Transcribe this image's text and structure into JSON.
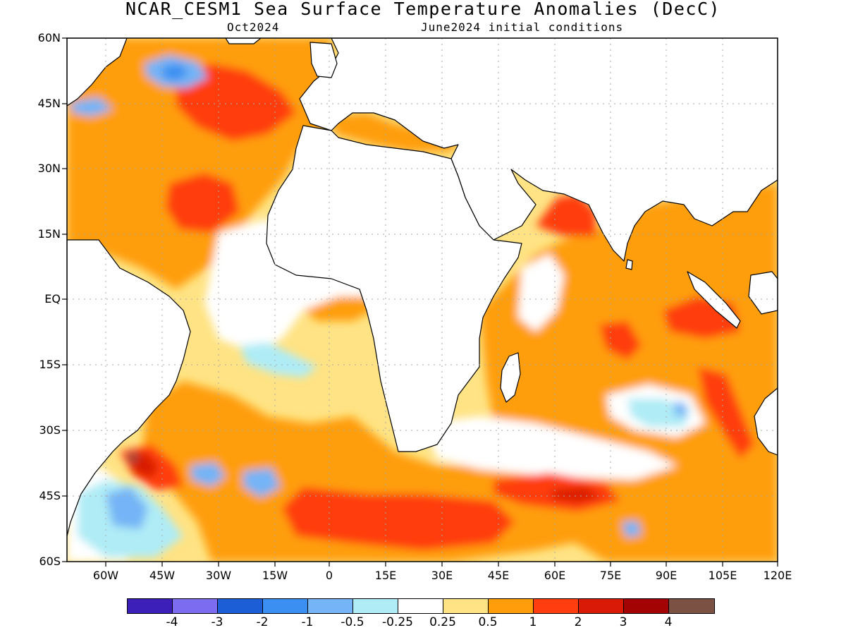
{
  "title": "NCAR_CESM1 Sea Surface Temperature Anomalies (DecC)",
  "subtitle_left": "Oct2024",
  "subtitle_right": "June2024 initial conditions",
  "lat_labels": [
    "60N",
    "45N",
    "30N",
    "15N",
    "EQ",
    "15S",
    "30S",
    "45S",
    "60S"
  ],
  "lon_labels": [
    "60W",
    "45W",
    "30W",
    "15W",
    "0",
    "15E",
    "30E",
    "45E",
    "60E",
    "75E",
    "90E",
    "105E",
    "120E"
  ],
  "colorbar": {
    "colors": [
      "#3b1fb8",
      "#7b6cf0",
      "#1c5ed6",
      "#3b8ff2",
      "#75b4f6",
      "#afecf6",
      "#ffffff",
      "#ffe384",
      "#ff9e0a",
      "#ff3d0f",
      "#d91a06",
      "#a30303",
      "#7a5143"
    ],
    "labels": [
      "-4",
      "-3",
      "-2",
      "-1",
      "-0.5",
      "-0.25",
      "0.25",
      "0.5",
      "1",
      "2",
      "3",
      "4"
    ]
  },
  "colors": {
    "ocean_base": "#ffe384",
    "land": "#ffffff",
    "coastline": "#000000",
    "gridline": "#aaaaaa"
  }
}
